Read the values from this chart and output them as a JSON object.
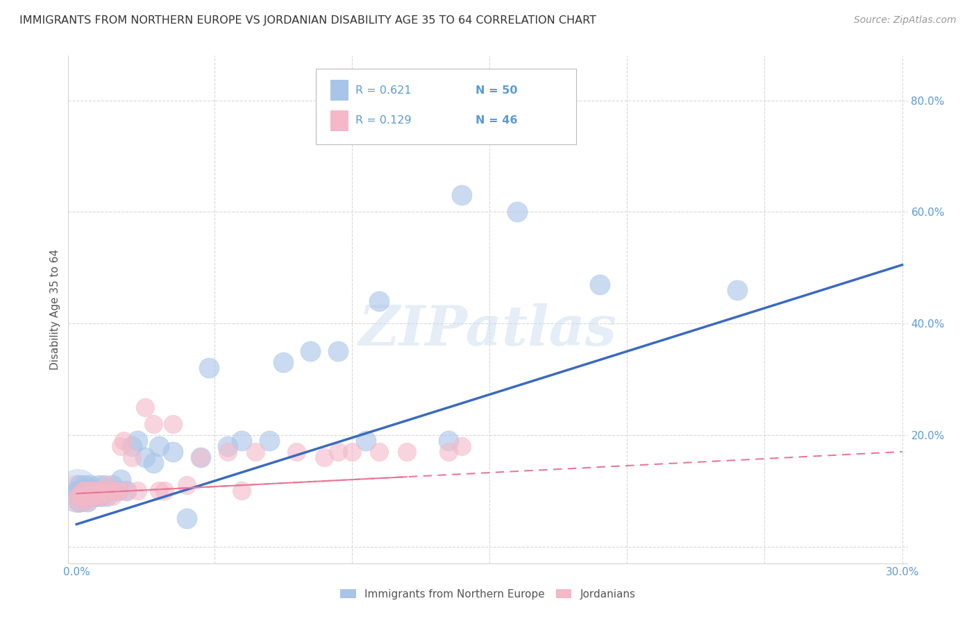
{
  "title": "IMMIGRANTS FROM NORTHERN EUROPE VS JORDANIAN DISABILITY AGE 35 TO 64 CORRELATION CHART",
  "source": "Source: ZipAtlas.com",
  "ylabel": "Disability Age 35 to 64",
  "blue_color": "#a8c4e8",
  "pink_color": "#f4b8c8",
  "blue_line_color": "#3a6abf",
  "pink_line_color": "#e87898",
  "axis_color": "#5b9bd5",
  "grid_color": "#d8d8d8",
  "blue_x": [
    0.0005,
    0.001,
    0.001,
    0.001,
    0.002,
    0.002,
    0.003,
    0.003,
    0.004,
    0.004,
    0.005,
    0.005,
    0.005,
    0.006,
    0.006,
    0.007,
    0.007,
    0.008,
    0.008,
    0.009,
    0.01,
    0.01,
    0.011,
    0.012,
    0.013,
    0.015,
    0.016,
    0.018,
    0.02,
    0.022,
    0.025,
    0.028,
    0.03,
    0.035,
    0.04,
    0.045,
    0.048,
    0.055,
    0.06,
    0.07,
    0.075,
    0.085,
    0.095,
    0.105,
    0.11,
    0.135,
    0.14,
    0.16,
    0.19,
    0.24
  ],
  "blue_y": [
    0.1,
    0.08,
    0.1,
    0.11,
    0.09,
    0.1,
    0.09,
    0.11,
    0.08,
    0.1,
    0.09,
    0.1,
    0.11,
    0.09,
    0.1,
    0.09,
    0.1,
    0.09,
    0.11,
    0.09,
    0.1,
    0.11,
    0.09,
    0.1,
    0.11,
    0.1,
    0.12,
    0.1,
    0.18,
    0.19,
    0.16,
    0.15,
    0.18,
    0.17,
    0.05,
    0.16,
    0.32,
    0.18,
    0.19,
    0.19,
    0.33,
    0.35,
    0.35,
    0.19,
    0.44,
    0.19,
    0.63,
    0.6,
    0.47,
    0.46
  ],
  "pink_x": [
    0.0005,
    0.001,
    0.001,
    0.002,
    0.002,
    0.003,
    0.003,
    0.004,
    0.004,
    0.005,
    0.005,
    0.006,
    0.006,
    0.007,
    0.007,
    0.008,
    0.009,
    0.01,
    0.011,
    0.012,
    0.013,
    0.014,
    0.015,
    0.016,
    0.017,
    0.018,
    0.02,
    0.022,
    0.025,
    0.028,
    0.03,
    0.032,
    0.035,
    0.04,
    0.045,
    0.055,
    0.06,
    0.065,
    0.08,
    0.09,
    0.095,
    0.1,
    0.11,
    0.12,
    0.135,
    0.14
  ],
  "pink_y": [
    0.09,
    0.08,
    0.09,
    0.09,
    0.1,
    0.09,
    0.1,
    0.08,
    0.09,
    0.09,
    0.1,
    0.09,
    0.1,
    0.09,
    0.1,
    0.09,
    0.1,
    0.09,
    0.11,
    0.1,
    0.09,
    0.1,
    0.1,
    0.18,
    0.19,
    0.1,
    0.16,
    0.1,
    0.25,
    0.22,
    0.1,
    0.1,
    0.22,
    0.11,
    0.16,
    0.17,
    0.1,
    0.17,
    0.17,
    0.16,
    0.17,
    0.17,
    0.17,
    0.17,
    0.17,
    0.18
  ],
  "blue_marker_size": 55,
  "pink_marker_size": 45,
  "legend_r1": "R = 0.621",
  "legend_n1": "N = 50",
  "legend_r2": "R = 0.129",
  "legend_n2": "N = 46"
}
